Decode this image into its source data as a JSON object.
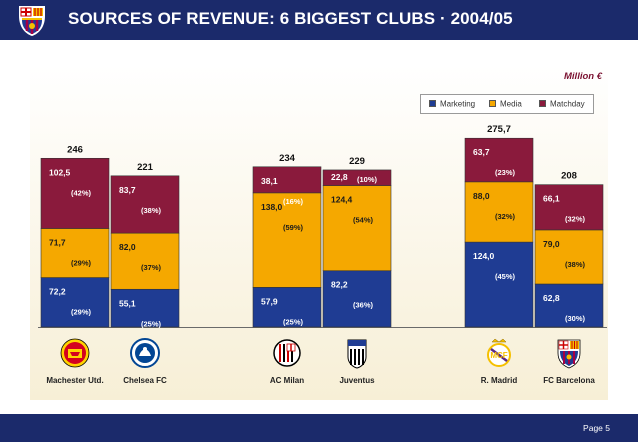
{
  "header": {
    "title": "SOURCES OF REVENUE: 6 BIGGEST CLUBS · 2004/05"
  },
  "footer": {
    "page_label": "Page  5"
  },
  "chart_data": {
    "type": "bar",
    "stacked": true,
    "title": "SOURCES OF REVENUE: 6 BIGGEST CLUBS · 2004/05",
    "unit": "Million €",
    "legend_position": "top-right",
    "categories": [
      "Machester Utd.",
      "Chelsea FC",
      "AC Milan",
      "Juventus",
      "R. Madrid",
      "FC Barcelona"
    ],
    "totals": [
      "246",
      "221",
      "234",
      "229",
      "275,7",
      "208"
    ],
    "series": [
      {
        "name": "Marketing",
        "color": "#1f3c93",
        "values": [
          72.2,
          55.1,
          57.9,
          82.2,
          124.0,
          62.8
        ],
        "labels": [
          "72,2",
          "55,1",
          "57,9",
          "82,2",
          "124,0",
          "62,8"
        ],
        "percents": [
          "(29%)",
          "(25%)",
          "(25%)",
          "(36%)",
          "(45%)",
          "(30%)"
        ]
      },
      {
        "name": "Media",
        "color": "#f5a800",
        "values": [
          71.7,
          82.0,
          138.0,
          124.4,
          88.0,
          79.0
        ],
        "labels": [
          "71,7",
          "82,0",
          "138,0",
          "124,4",
          "88,0",
          "79,0"
        ],
        "percents": [
          "(29%)",
          "(37%)",
          "(59%)",
          "(54%)",
          "(32%)",
          "(38%)"
        ]
      },
      {
        "name": "Matchday",
        "color": "#8a1a3c",
        "values": [
          102.5,
          83.7,
          38.1,
          22.8,
          63.7,
          66.1
        ],
        "labels": [
          "102,5",
          "83,7",
          "38,1",
          "22,8",
          "63,7",
          "66,1"
        ],
        "percents": [
          "(42%)",
          "(38%)",
          "(16%)",
          "(10%)",
          "(23%)",
          "(32%)"
        ]
      }
    ],
    "logos": [
      "manchester-united-crest",
      "chelsea-crest",
      "ac-milan-crest",
      "juventus-crest",
      "real-madrid-crest",
      "fc-barcelona-crest"
    ]
  }
}
